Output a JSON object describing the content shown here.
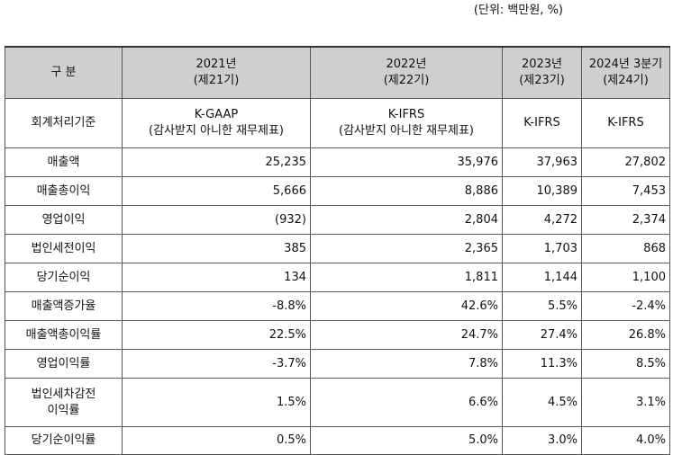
{
  "unit_note": "(단위: 백만원, %)",
  "header": {
    "item_label": "구 분",
    "periods": [
      {
        "year": "2021년",
        "term": "(제21기)"
      },
      {
        "year": "2022년",
        "term": "(제22기)"
      },
      {
        "year": "2023년",
        "term": "(제23기)"
      },
      {
        "year": "2024년 3분기",
        "term": "(제24기)"
      }
    ]
  },
  "standards": {
    "label": "회계처리기준",
    "values": [
      {
        "line1": "K-GAAP",
        "line2": "(감사받지 아니한 재무제표)"
      },
      {
        "line1": "K-IFRS",
        "line2": "(감사받지 아니한 재무제표)"
      },
      {
        "line1": "K-IFRS",
        "line2": ""
      },
      {
        "line1": "K-IFRS",
        "line2": ""
      }
    ]
  },
  "rows": [
    {
      "label": "매출액",
      "values": [
        "25,235",
        "35,976",
        "37,963",
        "27,802"
      ]
    },
    {
      "label": "매출총이익",
      "values": [
        "5,666",
        "8,886",
        "10,389",
        "7,453"
      ]
    },
    {
      "label": "영업이익",
      "values": [
        "(932)",
        "2,804",
        "4,272",
        "2,374"
      ]
    },
    {
      "label": "법인세전이익",
      "values": [
        "385",
        "2,365",
        "1,703",
        "868"
      ]
    },
    {
      "label": "당기순이익",
      "values": [
        "134",
        "1,811",
        "1,144",
        "1,100"
      ]
    },
    {
      "label": "매출액증가율",
      "values": [
        "-8.8%",
        "42.6%",
        "5.5%",
        "-2.4%"
      ]
    },
    {
      "label": "매출액총이익률",
      "values": [
        "22.5%",
        "24.7%",
        "27.4%",
        "26.8%"
      ]
    },
    {
      "label": "영업이익률",
      "values": [
        "-3.7%",
        "7.8%",
        "11.3%",
        "8.5%"
      ]
    },
    {
      "label_line1": "법인세차감전",
      "label_line2": "이익률",
      "values": [
        "1.5%",
        "6.6%",
        "4.5%",
        "3.1%"
      ]
    },
    {
      "label": "당기순이익률",
      "values": [
        "0.5%",
        "5.0%",
        "3.0%",
        "4.0%"
      ]
    }
  ]
}
